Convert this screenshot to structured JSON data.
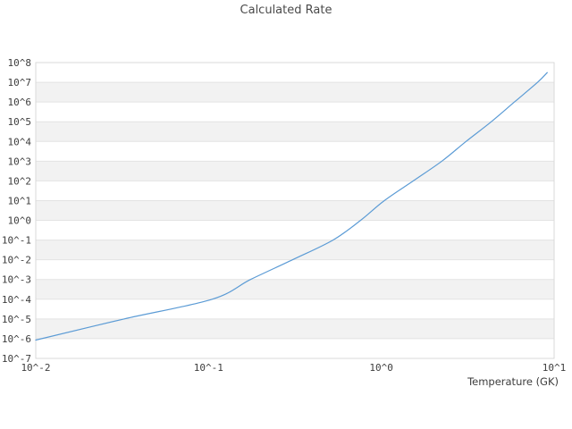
{
  "title": "Calculated Rate",
  "chart_data": {
    "type": "line",
    "title": "Calculated Rate",
    "xlabel": "Temperature (GK)",
    "ylabel": "",
    "x_scale": "log",
    "y_scale": "log",
    "xlim": [
      0.01,
      10
    ],
    "ylim": [
      1e-07,
      100000000.0
    ],
    "x_tick_labels": [
      "10^-2",
      "10^-1",
      "10^0",
      "10^1"
    ],
    "x_tick_exponents": [
      -2,
      -1,
      0,
      1
    ],
    "y_tick_labels": [
      "10^8",
      "10^7",
      "10^6",
      "10^5",
      "10^4",
      "10^3",
      "10^2",
      "10^1",
      "10^0",
      "10^-1",
      "10^-2",
      "10^-3",
      "10^-4",
      "10^-5",
      "10^-6",
      "10^-7"
    ],
    "y_tick_exponents": [
      8,
      7,
      6,
      5,
      4,
      3,
      2,
      1,
      0,
      -1,
      -2,
      -3,
      -4,
      -5,
      -6,
      -7
    ],
    "grid": "horizontal-only",
    "bands": "alternating horizontal decade bands, gray when upper exponent is odd",
    "legend": "none",
    "series": [
      {
        "name": "calculated-rate",
        "color": "#5b9bd5",
        "points": [
          {
            "T": 0.01,
            "rate": 8.5e-07
          },
          {
            "T": 0.0324,
            "rate": 1e-05
          },
          {
            "T": 0.105,
            "rate": 0.0001
          },
          {
            "T": 0.175,
            "rate": 0.001
          },
          {
            "T": 0.306,
            "rate": 0.01
          },
          {
            "T": 0.525,
            "rate": 0.1
          },
          {
            "T": 0.759,
            "rate": 1.0
          },
          {
            "T": 1.04,
            "rate": 10.0
          },
          {
            "T": 1.53,
            "rate": 100.0
          },
          {
            "T": 2.24,
            "rate": 1000.0
          },
          {
            "T": 3.09,
            "rate": 10000.0
          },
          {
            "T": 4.33,
            "rate": 100000.0
          },
          {
            "T": 5.89,
            "rate": 1000000.0
          },
          {
            "T": 8.02,
            "rate": 10000000.0
          },
          {
            "T": 9.12,
            "rate": 31000000.0
          }
        ]
      }
    ]
  },
  "colors": {
    "background": "#ffffff",
    "band_gray": "#f2f2f2",
    "gridline": "#e3e3e3",
    "border": "#d9d9d9",
    "line": "#5b9bd5",
    "title_text": "#4a4a4a",
    "tick_text": "#3d3d3d"
  }
}
